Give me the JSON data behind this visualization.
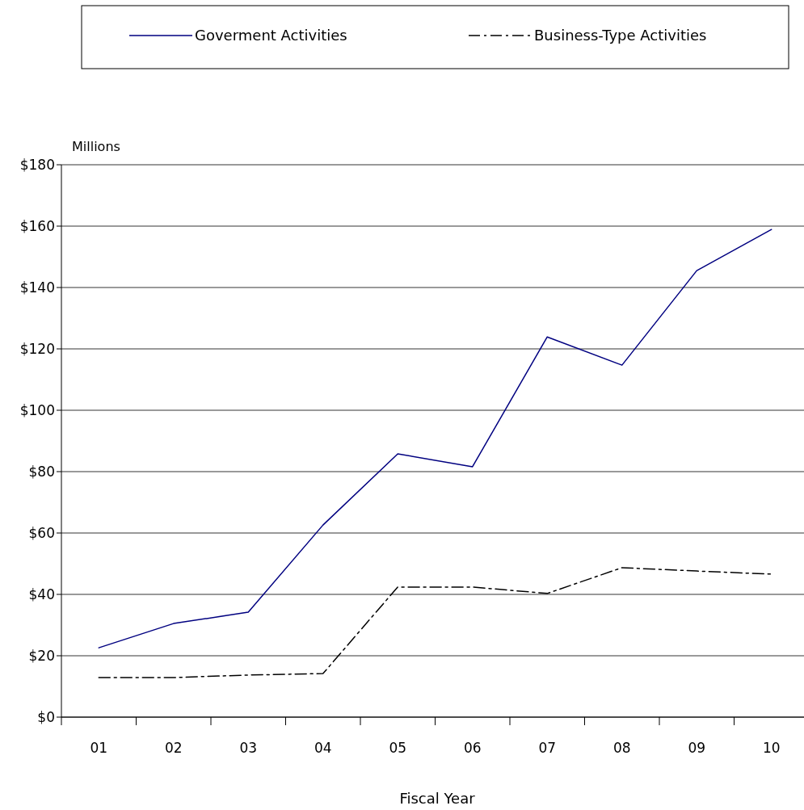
{
  "chart_data": {
    "type": "line",
    "xlabel": "Fiscal Year",
    "ylabel": "Millions",
    "categories": [
      "01",
      "02",
      "03",
      "04",
      "05",
      "06",
      "07",
      "08",
      "09",
      "10"
    ],
    "series": [
      {
        "name": "Goverment Activities",
        "color": "#000080",
        "line_style": "solid",
        "values": [
          22.6,
          30.5,
          34.2,
          62.6,
          85.8,
          81.6,
          123.9,
          114.7,
          145.5,
          158.9
        ]
      },
      {
        "name": "Business-Type Activities",
        "color": "#000000",
        "line_style": "dashed",
        "values": [
          12.9,
          12.9,
          13.7,
          14.2,
          42.4,
          42.4,
          40.3,
          48.7,
          47.6,
          46.6
        ]
      }
    ],
    "ylim": [
      0,
      180
    ],
    "yticks": [
      {
        "value": 0,
        "label": "$0"
      },
      {
        "value": 20,
        "label": "$20"
      },
      {
        "value": 40,
        "label": "$40"
      },
      {
        "value": 60,
        "label": "$60"
      },
      {
        "value": 80,
        "label": "$80"
      },
      {
        "value": 100,
        "label": "$100"
      },
      {
        "value": 120,
        "label": "$120"
      },
      {
        "value": 140,
        "label": "$140"
      },
      {
        "value": 160,
        "label": "$160"
      },
      {
        "value": 180,
        "label": "$180"
      }
    ],
    "grid": "y",
    "legend": "top",
    "marker": "none"
  }
}
